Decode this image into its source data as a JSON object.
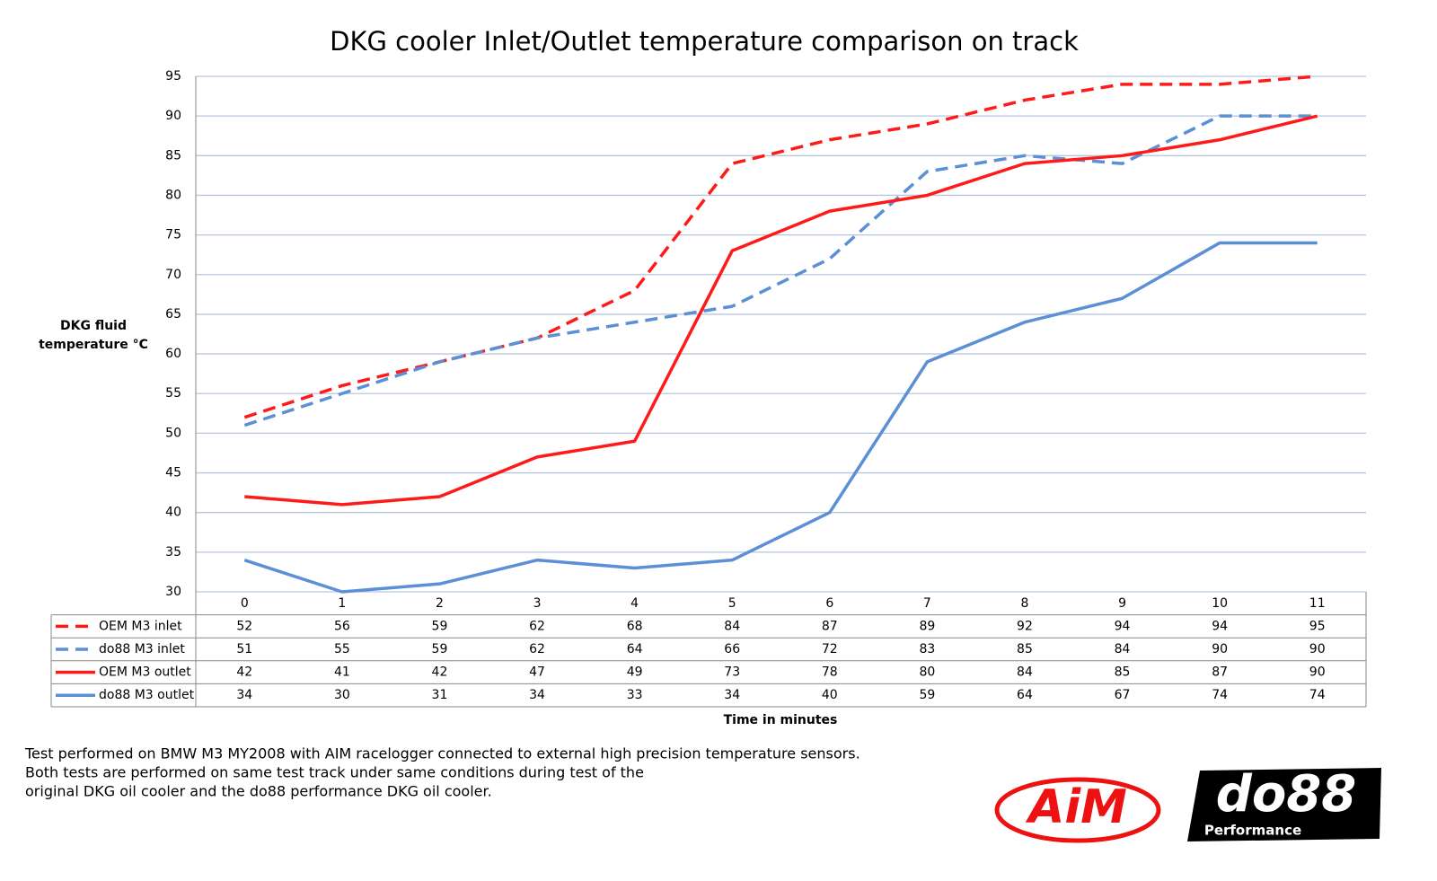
{
  "chart_data": {
    "type": "line",
    "title": "DKG cooler Inlet/Outlet temperature comparison on track",
    "y_label": [
      "DKG fluid",
      "temperature °C"
    ],
    "x_label": "Time in minutes",
    "categories": [
      "0",
      "1",
      "2",
      "3",
      "4",
      "5",
      "6",
      "7",
      "8",
      "9",
      "10",
      "11"
    ],
    "series": [
      {
        "name": "OEM M3 inlet",
        "color": "#ff1a1a",
        "line_style": "dashed",
        "values": [
          52,
          56,
          59,
          62,
          68,
          84,
          87,
          89,
          92,
          94,
          94,
          95
        ]
      },
      {
        "name": "do88 M3 inlet",
        "color": "#5b8fd6",
        "line_style": "dashed",
        "values": [
          51,
          55,
          59,
          62,
          64,
          66,
          72,
          83,
          85,
          84,
          90,
          90
        ]
      },
      {
        "name": "OEM M3 outlet",
        "color": "#ff1a1a",
        "line_style": "solid",
        "values": [
          42,
          41,
          42,
          47,
          49,
          73,
          78,
          80,
          84,
          85,
          87,
          90
        ]
      },
      {
        "name": "do88 M3 outlet",
        "color": "#5b8fd6",
        "line_style": "solid",
        "values": [
          34,
          30,
          31,
          34,
          33,
          34,
          40,
          59,
          64,
          67,
          74,
          74
        ]
      }
    ],
    "ylim": [
      30,
      95
    ],
    "yticks": [
      30,
      35,
      40,
      45,
      50,
      55,
      60,
      65,
      70,
      75,
      80,
      85,
      90,
      95
    ],
    "grid": true,
    "data_table": true
  },
  "footnote": [
    "Test performed on BMW M3 MY2008 with AIM racelogger connected to external high precision temperature sensors.",
    "Both tests are performed on same test track under same conditions during test of the",
    "original DKG oil cooler and the do88 performance DKG oil cooler."
  ],
  "logos": {
    "aim": "AiM",
    "do88": "do88",
    "do88_sub": "Performance"
  }
}
